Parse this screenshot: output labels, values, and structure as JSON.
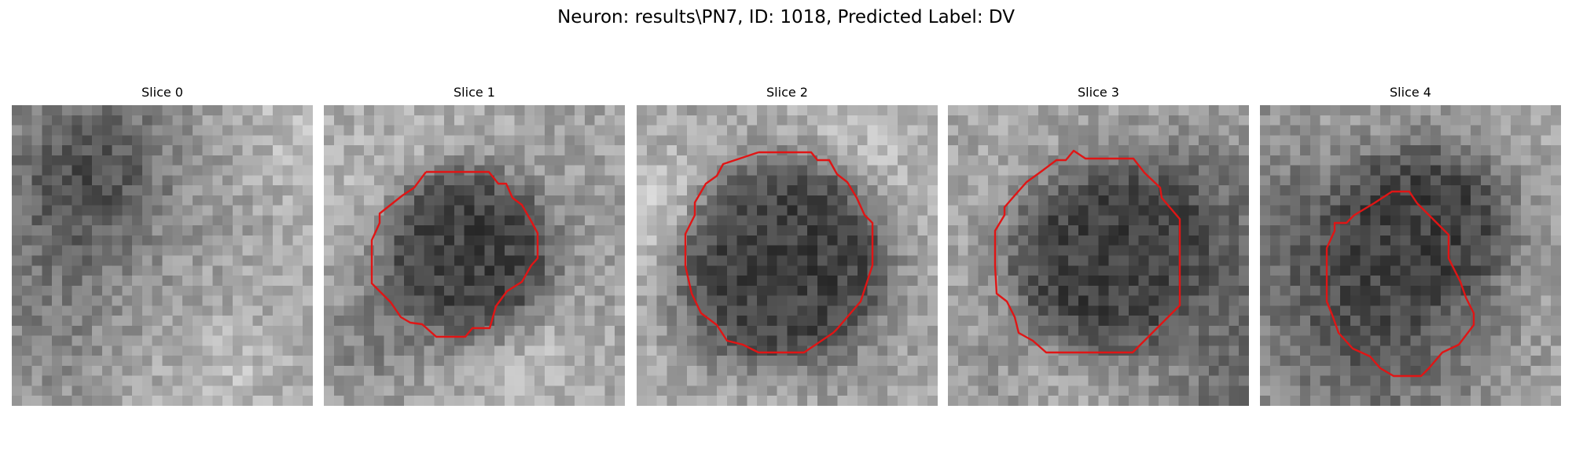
{
  "figure": {
    "title": "Neuron: results\\PN7, ID: 1018, Predicted Label: DV",
    "contour_color": "#e01515"
  },
  "panels": [
    {
      "title": "Slice 0",
      "has_contour": false,
      "blob_center": [
        0.5,
        0.5
      ],
      "blob_radius": 0.0,
      "seed": 11
    },
    {
      "title": "Slice 1",
      "has_contour": true,
      "blob_center": [
        0.46,
        0.47
      ],
      "blob_radius": 0.29,
      "seed": 23
    },
    {
      "title": "Slice 2",
      "has_contour": true,
      "blob_center": [
        0.48,
        0.51
      ],
      "blob_radius": 0.34,
      "seed": 37
    },
    {
      "title": "Slice 3",
      "has_contour": true,
      "blob_center": [
        0.5,
        0.5
      ],
      "blob_radius": 0.31,
      "seed": 41
    },
    {
      "title": "Slice 4",
      "has_contour": true,
      "blob_center": [
        0.53,
        0.4
      ],
      "blob_radius": 0.26,
      "seed": 53
    }
  ]
}
